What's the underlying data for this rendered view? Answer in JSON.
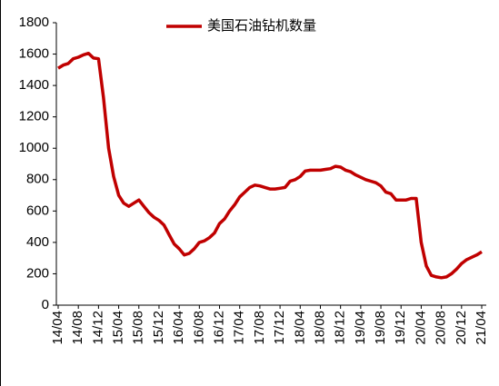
{
  "chart_data": {
    "type": "line",
    "legend": "top",
    "grid": false,
    "categories": [
      "14/04",
      null,
      null,
      null,
      "14/08",
      null,
      null,
      null,
      "14/12",
      null,
      null,
      null,
      "15/04",
      null,
      null,
      null,
      "15/08",
      null,
      null,
      null,
      "15/12",
      null,
      null,
      null,
      "16/04",
      null,
      null,
      null,
      "16/08",
      null,
      null,
      null,
      "16/12",
      null,
      null,
      null,
      "17/04",
      null,
      null,
      null,
      "17/08",
      null,
      null,
      null,
      "17/12",
      null,
      null,
      null,
      "18/04",
      null,
      null,
      null,
      "18/08",
      null,
      null,
      null,
      "18/12",
      null,
      null,
      null,
      "19/04",
      null,
      null,
      null,
      "19/08",
      null,
      null,
      null,
      "19/12",
      null,
      null,
      null,
      "20/04",
      null,
      null,
      null,
      "20/08",
      null,
      null,
      null,
      "20/12",
      null,
      null,
      null,
      "21/04"
    ],
    "series": [
      {
        "name": "美国石油钻机数量",
        "color": "#c00000",
        "values": [
          1510,
          1530,
          1540,
          1570,
          1580,
          1595,
          1605,
          1575,
          1570,
          1320,
          1000,
          820,
          700,
          650,
          630,
          650,
          670,
          630,
          590,
          560,
          540,
          510,
          450,
          390,
          360,
          320,
          330,
          360,
          400,
          410,
          430,
          460,
          520,
          550,
          600,
          640,
          690,
          720,
          750,
          765,
          760,
          750,
          740,
          740,
          745,
          750,
          790,
          800,
          820,
          855,
          860,
          860,
          860,
          865,
          870,
          885,
          880,
          860,
          850,
          830,
          815,
          800,
          790,
          780,
          760,
          720,
          710,
          670,
          670,
          670,
          680,
          680,
          400,
          250,
          190,
          180,
          175,
          180,
          200,
          230,
          265,
          290,
          305,
          320,
          340
        ]
      }
    ],
    "ylim": [
      0,
      1800
    ],
    "yticks": [
      0,
      200,
      400,
      600,
      800,
      1000,
      1200,
      1400,
      1600,
      1800
    ]
  }
}
